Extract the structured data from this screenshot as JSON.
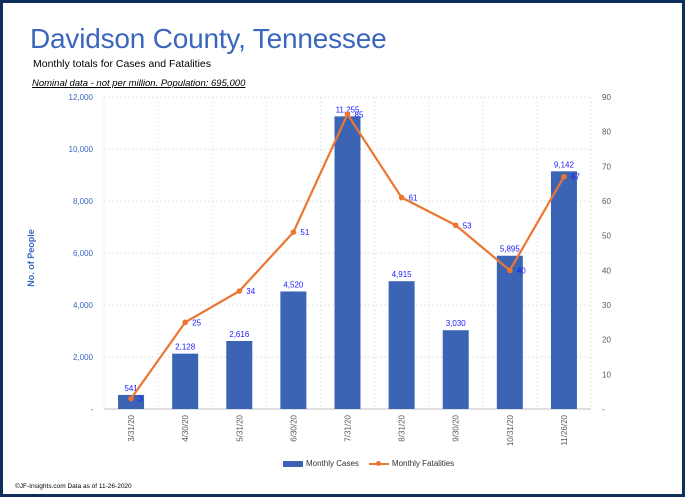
{
  "header": {
    "title": "Davidson County, Tennessee",
    "subtitle": "Monthly totals for Cases and Fatalities",
    "note": "Nominal data - not per million.  Population: 695,000"
  },
  "footer": "©JF-Insights.com  Data as of 11-26-2020",
  "colors": {
    "bars": "#3c64b4",
    "line": "#ed7532",
    "label": "#1a1aff",
    "axis_left": "#3a66c0",
    "axis_right": "#595959",
    "frame": "#0d2f5a"
  },
  "chart_data": {
    "type": "bar",
    "title": "Davidson County, Tennessee",
    "categories": [
      "3/31/20",
      "4/30/20",
      "5/31/20",
      "6/30/20",
      "7/31/20",
      "8/31/20",
      "9/30/20",
      "10/31/20",
      "11/26/20"
    ],
    "series": [
      {
        "name": "Monthly Cases",
        "type": "bar",
        "axis": "left",
        "values": [
          541,
          2128,
          2616,
          4520,
          11255,
          4915,
          3030,
          5895,
          9142
        ],
        "labels": [
          "541",
          "2,128",
          "2,616",
          "4,520",
          "11,255",
          "4,915",
          "3,030",
          "5,895",
          "9,142"
        ]
      },
      {
        "name": "Monthly Fatalities",
        "type": "line",
        "axis": "right",
        "values": [
          3,
          25,
          34,
          51,
          85,
          61,
          53,
          40,
          67
        ],
        "labels": [
          "3",
          "25",
          "34",
          "51",
          "85",
          "61",
          "53",
          "40",
          "67"
        ]
      }
    ],
    "ylabel": "No. of People",
    "ylim": [
      0,
      12000
    ],
    "y2lim": [
      0,
      90
    ],
    "yticks": [
      "-",
      "2,000",
      "4,000",
      "6,000",
      "8,000",
      "10,000",
      "12,000"
    ],
    "y2ticks": [
      "-",
      "10",
      "20",
      "30",
      "40",
      "50",
      "60",
      "70",
      "80",
      "90"
    ],
    "legend": [
      "Monthly Cases",
      "Monthly Fatalities"
    ],
    "legend_position": "bottom",
    "grid": true
  }
}
